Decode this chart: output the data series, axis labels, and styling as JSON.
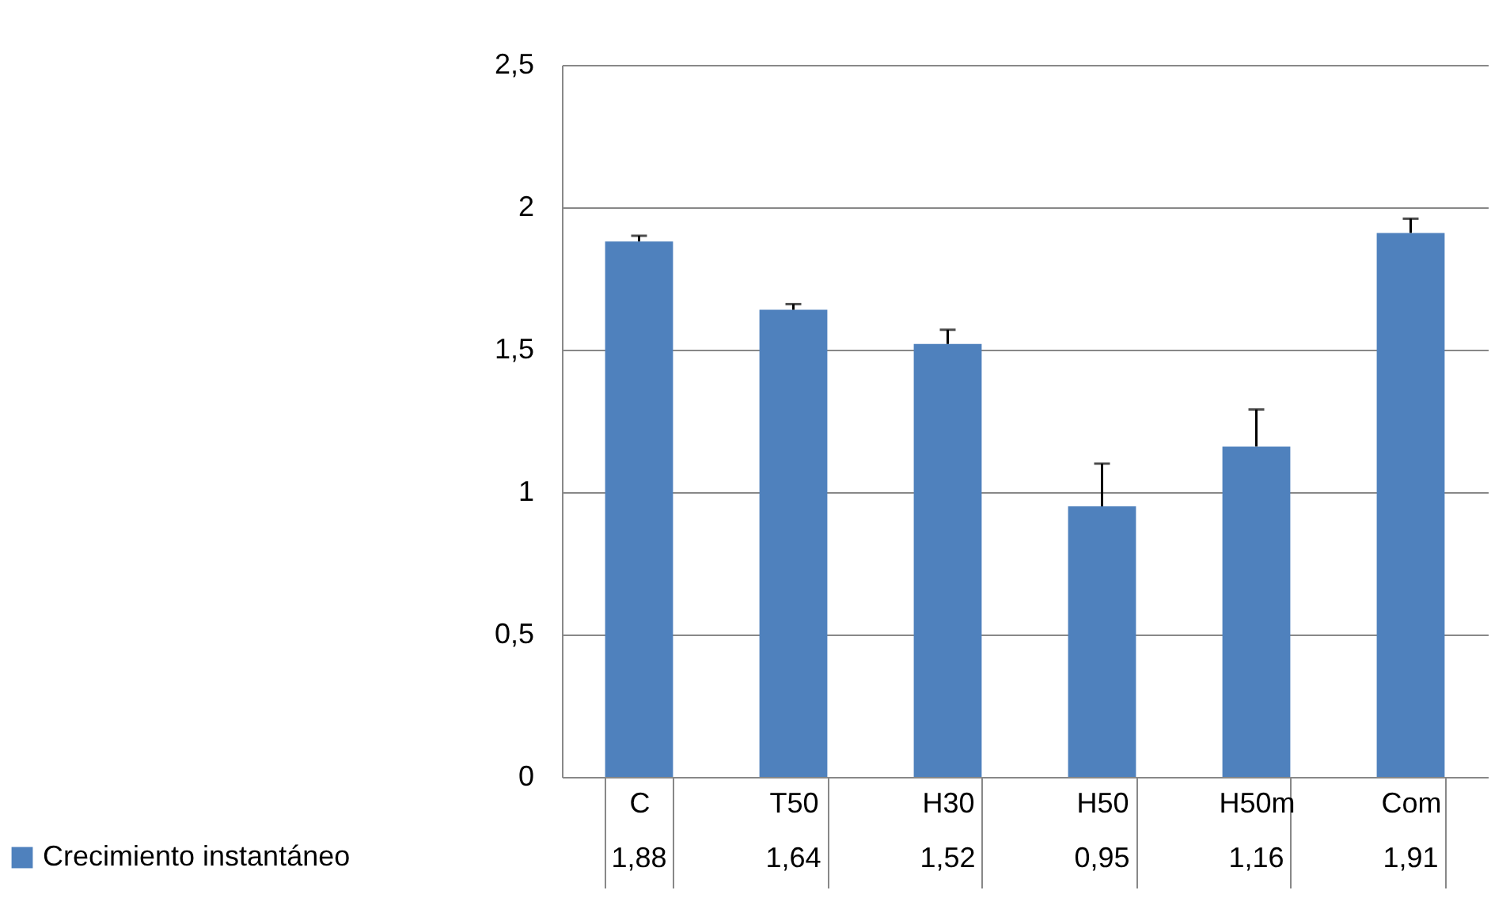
{
  "chart_data": {
    "type": "bar",
    "categories": [
      "C",
      "T50",
      "H30",
      "H50",
      "H50m",
      "Com"
    ],
    "series": [
      {
        "name": "Crecimiento instantáneo",
        "color": "#4f81bd",
        "values": [
          1.88,
          1.64,
          1.52,
          0.95,
          1.16,
          1.91
        ],
        "errors": [
          [
            1.88,
            1.9
          ],
          [
            1.64,
            1.66
          ],
          [
            1.52,
            1.57
          ],
          [
            0.95,
            1.1
          ],
          [
            1.16,
            1.29
          ],
          [
            1.91,
            1.96
          ]
        ],
        "value_labels": [
          "1,88",
          "1,64",
          "1,52",
          "0,95",
          "1,16",
          "1,91"
        ]
      }
    ],
    "ylim": [
      0,
      2.5
    ],
    "yticks": [
      0,
      {
        "value": 0.5,
        "label": "0,5"
      },
      1,
      {
        "value": 1.5,
        "label": "1,5"
      },
      2,
      {
        "value": 2.5,
        "label": "2,5"
      }
    ],
    "grid": "y",
    "legend": "bottom left"
  }
}
